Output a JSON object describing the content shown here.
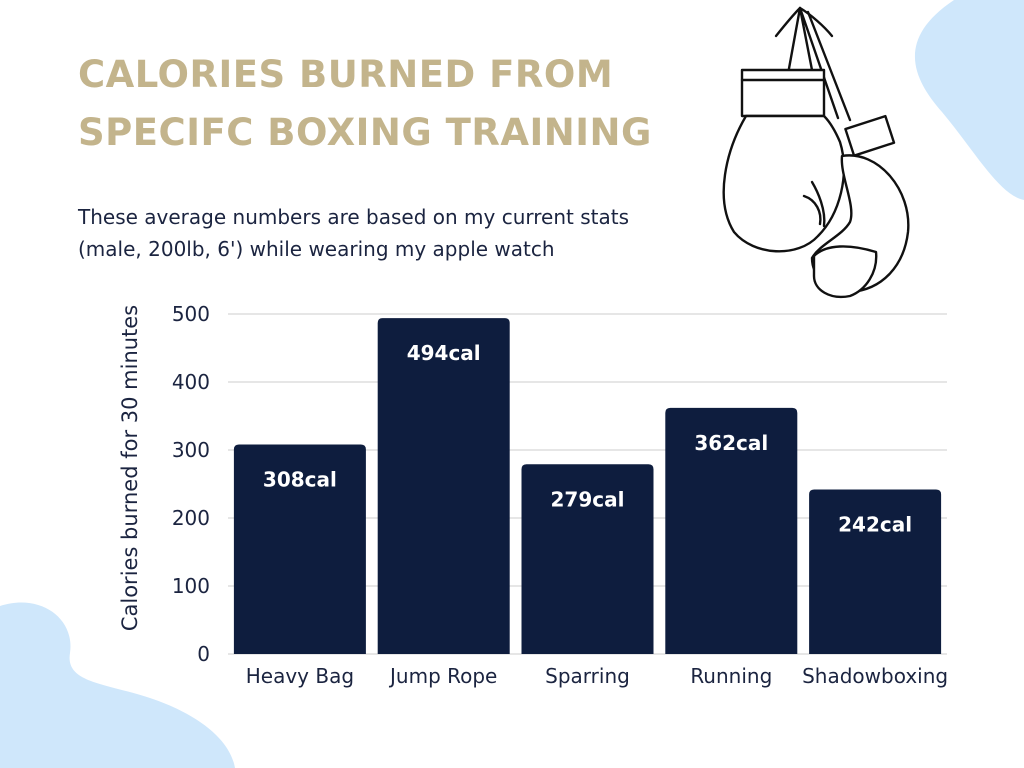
{
  "header": {
    "title": "CALORIES BURNED FROM SPECIFC BOXING TRAINING",
    "subtitle": "These average numbers are based on my current stats (male, 200lb, 6') while wearing my apple watch"
  },
  "colors": {
    "title": "#c3b48c",
    "bar": "#0e1d3e",
    "bar_label": "#ffffff",
    "text": "#1b2440",
    "grid": "#dddddd",
    "blob": "#cfe7fb"
  },
  "decorations": {
    "top_right": "hanging-boxing-gloves-icon"
  },
  "chart_data": {
    "type": "bar",
    "categories": [
      "Heavy Bag",
      "Jump Rope",
      "Sparring",
      "Running",
      "Shadowboxing"
    ],
    "values": [
      308,
      494,
      279,
      362,
      242
    ],
    "data_labels": [
      "308cal",
      "494cal",
      "279cal",
      "362cal",
      "242cal"
    ],
    "xlabel": "",
    "ylabel": "Calories  burned for 30 minutes",
    "ylim": [
      0,
      500
    ],
    "yticks": [
      0,
      100,
      200,
      300,
      400,
      500
    ],
    "grid": true,
    "legend": false
  }
}
